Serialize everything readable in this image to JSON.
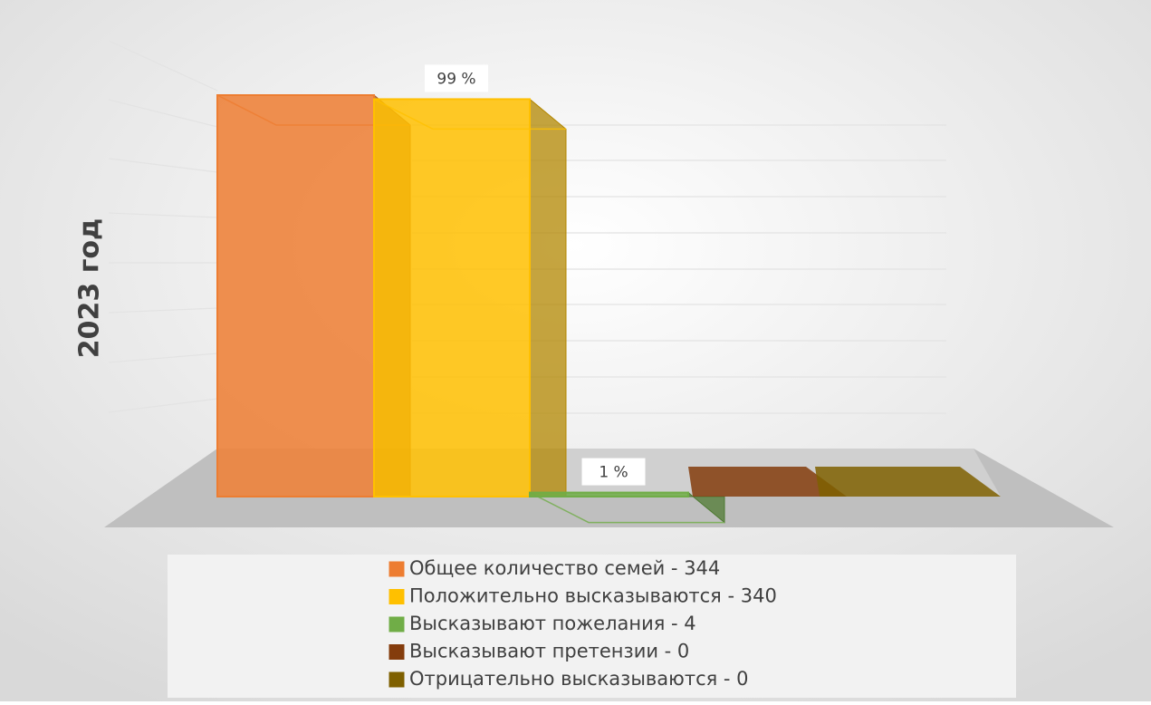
{
  "chart_data": {
    "type": "bar3d",
    "title": "2023 год",
    "categories": [
      null
    ],
    "ylim": [
      0,
      100
    ],
    "series": [
      {
        "name": "Общее количество семей - 344",
        "color": "#ed7d31",
        "values": [
          100
        ]
      },
      {
        "name": "Положительно высказываются - 340",
        "color": "#ffc000",
        "values": [
          99
        ],
        "value_labels": [
          "99 %"
        ]
      },
      {
        "name": "Высказывают пожелания - 4",
        "color": "#70ad47",
        "values": [
          1
        ],
        "value_labels": [
          "1 %"
        ]
      },
      {
        "name": "Высказывают претензии - 0",
        "color": "#843c0c",
        "values": [
          0
        ]
      },
      {
        "name": "Отрицательно высказываются - 0",
        "color": "#7f6000",
        "values": [
          0
        ]
      }
    ],
    "legend": "bottom"
  }
}
